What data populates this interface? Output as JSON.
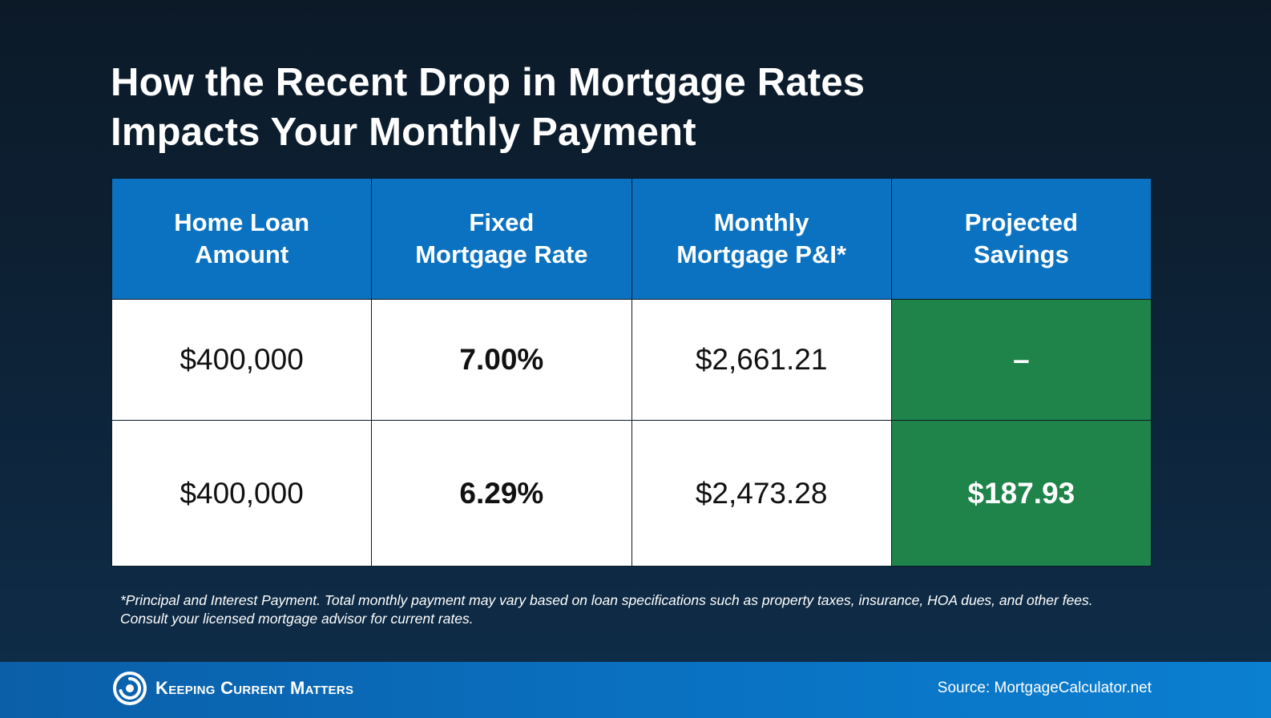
{
  "title": {
    "line1": "How the Recent Drop in Mortgage Rates",
    "line2": "Impacts Your Monthly Payment"
  },
  "table": {
    "headers": [
      {
        "line1": "Home Loan",
        "line2": "Amount"
      },
      {
        "line1": "Fixed",
        "line2": "Mortgage Rate"
      },
      {
        "line1": "Monthly",
        "line2": "Mortgage P&I*"
      },
      {
        "line1": "Projected",
        "line2": "Savings"
      }
    ],
    "rows": [
      {
        "loan_amount": "$400,000",
        "rate": "7.00%",
        "monthly_pi": "$2,661.21",
        "savings": "–"
      },
      {
        "loan_amount": "$400,000",
        "rate": "6.29%",
        "monthly_pi": "$2,473.28",
        "savings": "$187.93"
      }
    ]
  },
  "footnote": {
    "line1": "*Principal and Interest Payment. Total monthly payment may vary based on loan specifications such as property taxes, insurance, HOA dues, and other fees.",
    "line2": "Consult your licensed mortgage advisor for current rates."
  },
  "footer": {
    "brand": "Keeping Current Matters",
    "source": "Source: MortgageCalculator.net",
    "logo_icon": "kcm-swirl-icon"
  },
  "colors": {
    "header_blue": "#0a72c0",
    "savings_green": "#1e8449",
    "background_dark": "#0c1a28"
  }
}
